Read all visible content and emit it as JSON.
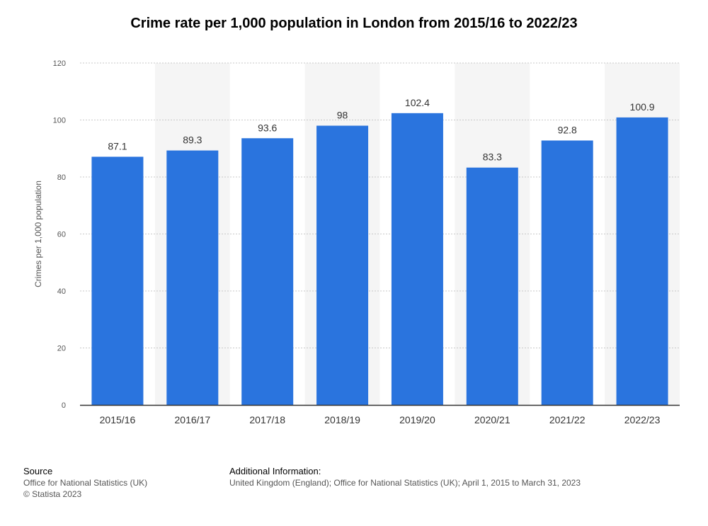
{
  "title": "Crime rate per 1,000 population in London from 2015/16 to 2022/23",
  "colors": {
    "bar": "#2a74de",
    "band": "#f5f5f5",
    "grid": "#c8c8c8",
    "axis": "#333333",
    "tick_text": "#555555"
  },
  "chart_data": {
    "type": "bar",
    "categories": [
      "2015/16",
      "2016/17",
      "2017/18",
      "2018/19",
      "2019/20",
      "2020/21",
      "2021/22",
      "2022/23"
    ],
    "values": [
      87.1,
      89.3,
      93.6,
      98,
      102.4,
      83.3,
      92.8,
      100.9
    ],
    "data_labels": [
      "87.1",
      "89.3",
      "93.6",
      "98",
      "102.4",
      "83.3",
      "92.8",
      "100.9"
    ],
    "title": "Crime rate per 1,000 population in London from 2015/16 to 2022/23",
    "xlabel": "",
    "ylabel": "Crimes per 1,000 population",
    "ylim": [
      0,
      120
    ],
    "yticks": [
      0,
      20,
      40,
      60,
      80,
      100,
      120
    ],
    "grid": true
  },
  "footer": {
    "source_heading": "Source",
    "source_line1": "Office for National Statistics (UK)",
    "source_line2": "© Statista 2023",
    "info_heading": "Additional Information:",
    "info_text": "United Kingdom (England); Office for National Statistics (UK); April 1, 2015 to March 31, 2023"
  }
}
